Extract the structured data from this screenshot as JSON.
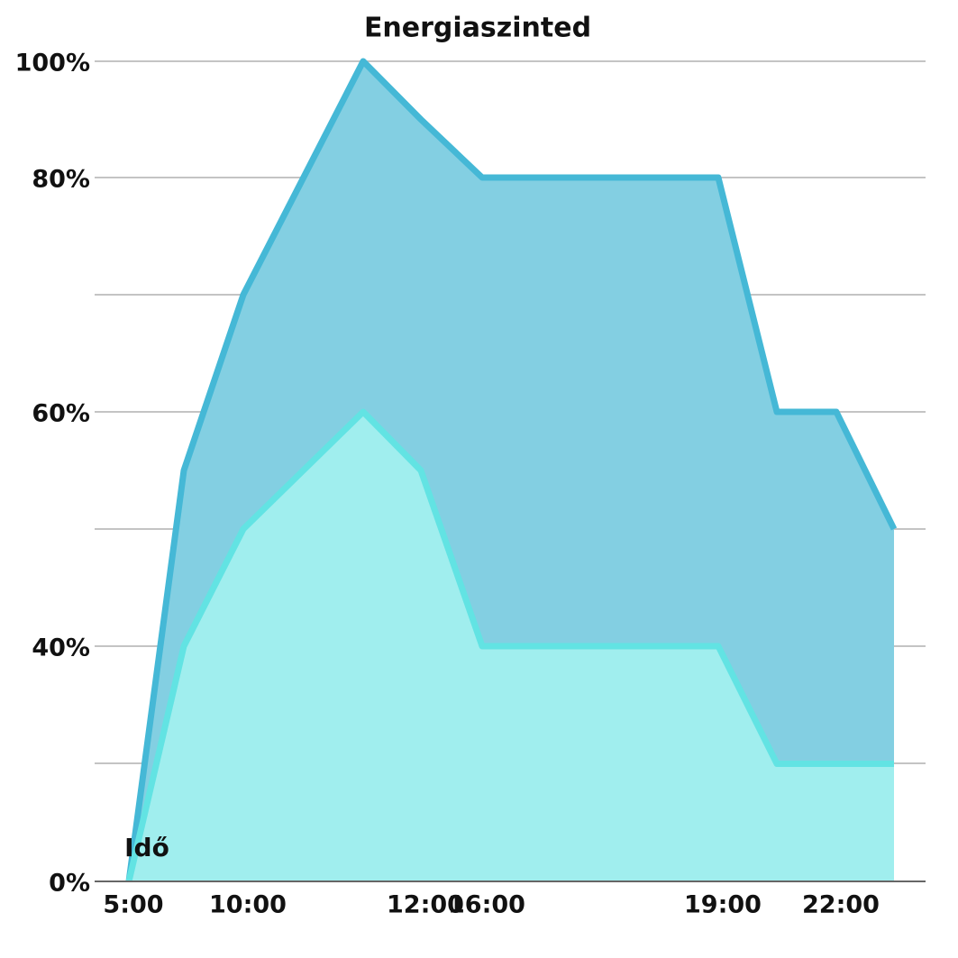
{
  "chart_data": {
    "type": "area",
    "title": "Energiaszinted",
    "x_label": "Idő",
    "categories": [
      "5:00",
      null,
      "10:00",
      null,
      "12:00",
      "16:00",
      "19:00",
      null,
      "22:00",
      null
    ],
    "series": [
      {
        "color": "#45b8d6",
        "fill": "#83cfe2",
        "values": [
          0,
          55,
          70,
          100,
          90,
          80,
          80,
          60,
          60,
          50
        ]
      },
      {
        "color": "#62e3e3",
        "fill": "#a0eeee",
        "values": [
          0,
          40,
          50,
          60,
          55,
          40,
          40,
          20,
          20,
          20
        ]
      }
    ],
    "ylim": [
      0,
      100
    ],
    "yticks": [
      {
        "value": 0,
        "label": "0%"
      },
      {
        "value": 40,
        "label": "40%"
      },
      {
        "value": 60,
        "label": "60%"
      },
      {
        "value": 80,
        "label": "80%"
      },
      {
        "value": 100,
        "label": "100%"
      }
    ],
    "grid": true
  }
}
